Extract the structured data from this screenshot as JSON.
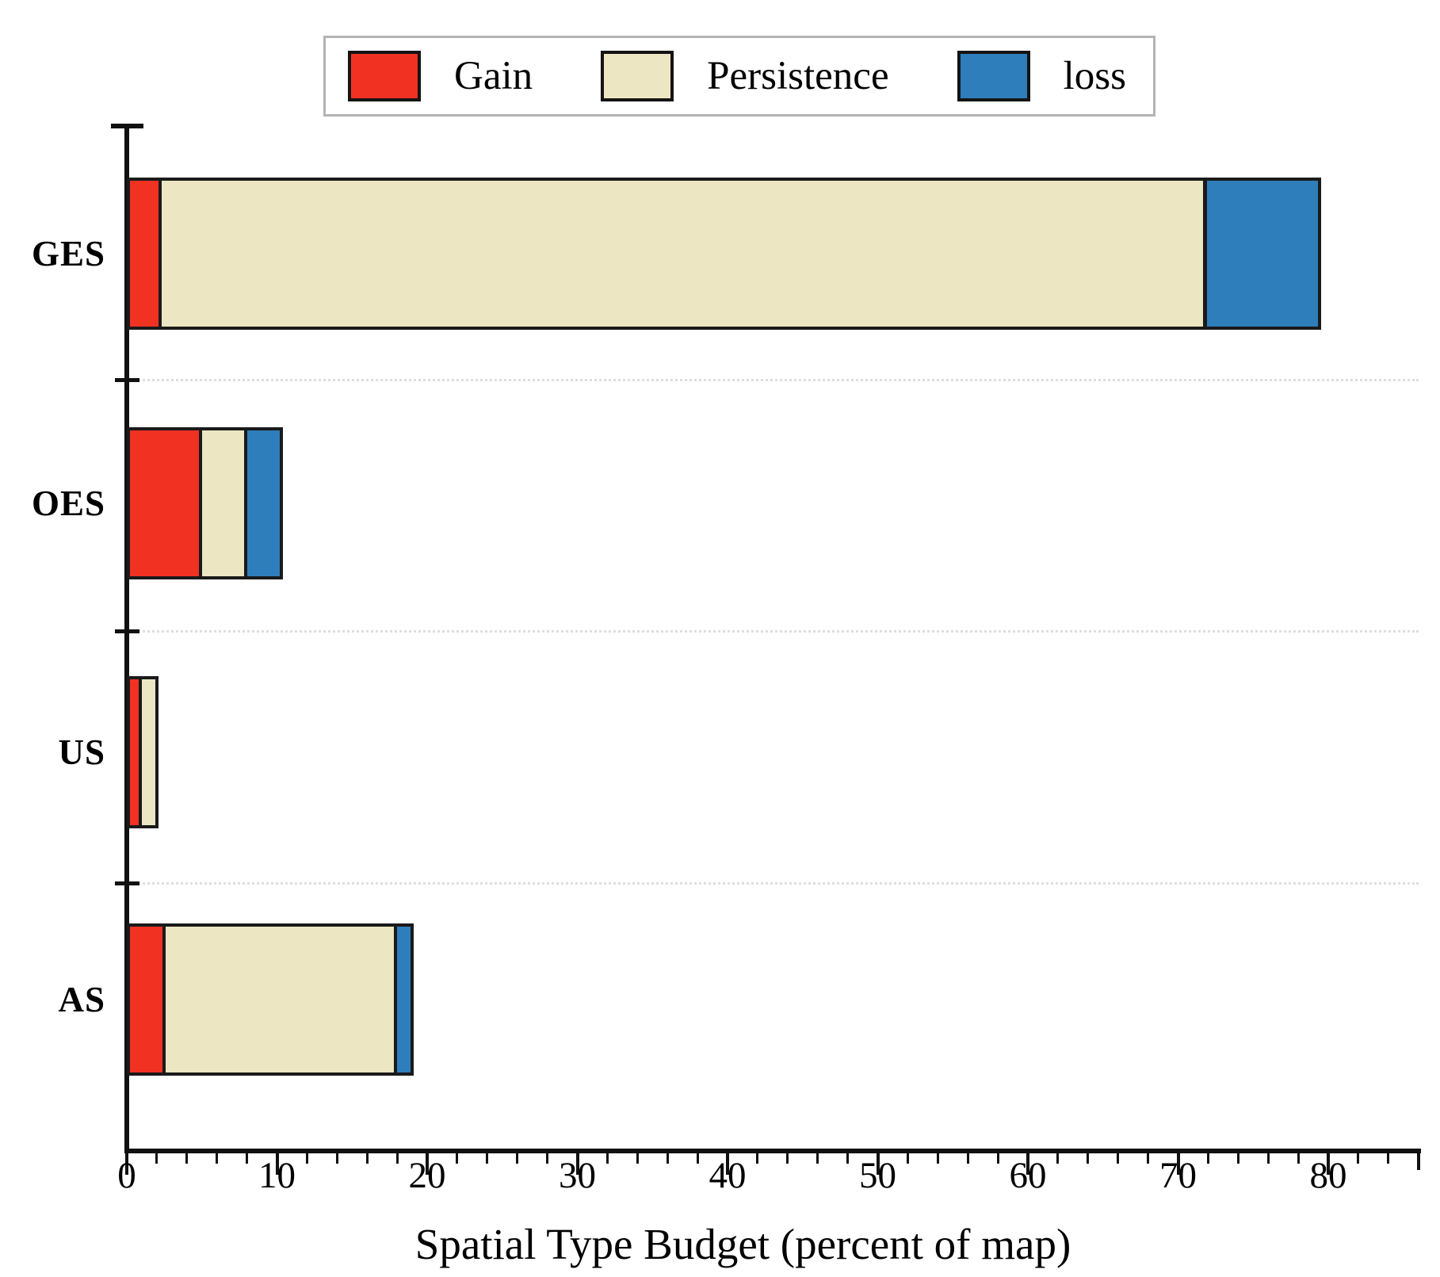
{
  "figure_title": "",
  "legend": {
    "items": [
      {
        "label": "Gain",
        "color": "#F13122"
      },
      {
        "label": "Persistence",
        "color": "#ECE6C2"
      },
      {
        "label": "loss",
        "color": "#2E7EBB"
      }
    ]
  },
  "chart_data": {
    "type": "bar",
    "orientation": "horizontal",
    "stacked": true,
    "categories": [
      "GES",
      "OES",
      "US",
      "AS"
    ],
    "series": [
      {
        "name": "Gain",
        "color": "#F13122",
        "values": [
          2.3,
          5.0,
          1.0,
          2.6
        ]
      },
      {
        "name": "Persistence",
        "color": "#ECE6C2",
        "values": [
          69.6,
          3.0,
          1.1,
          15.4
        ]
      },
      {
        "name": "loss",
        "color": "#2E7EBB",
        "values": [
          7.6,
          2.4,
          0.0,
          1.1
        ]
      }
    ],
    "bar_totals": [
      79.5,
      10.4,
      2.1,
      19.1
    ],
    "xlabel": "Spatial Type Budget (percent of map)",
    "ylabel": "",
    "xlim": [
      0,
      86
    ],
    "x_major_ticks": [
      0,
      10,
      20,
      30,
      40,
      50,
      60,
      70,
      80
    ],
    "x_minor_tick_step": 2,
    "grid": "dotted-separators-between-categories",
    "legend_position": "top-center",
    "bar_border_color": "#1a1a1a",
    "background_color": "#ffffff"
  }
}
